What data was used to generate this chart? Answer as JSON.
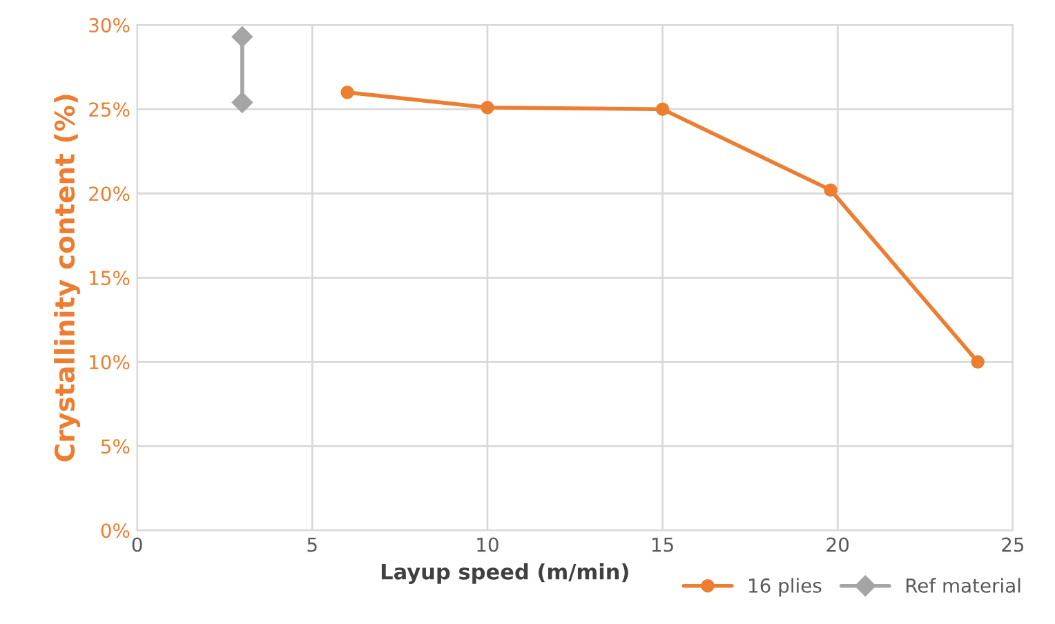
{
  "chart_data": {
    "type": "line",
    "xlabel": "Layup speed (m/min)",
    "ylabel": "Crystallinity content (%)",
    "series": [
      {
        "name": "16 plies",
        "color": "#ed7d31",
        "marker": "circle",
        "x": [
          6,
          10,
          15,
          19.8,
          24
        ],
        "values": [
          26.0,
          25.1,
          25.0,
          20.2,
          10.0
        ]
      },
      {
        "name": "Ref material",
        "color": "#a5a5a5",
        "marker": "diamond",
        "x": [
          3,
          3
        ],
        "values": [
          25.4,
          29.3
        ]
      }
    ],
    "xlim": [
      0,
      25
    ],
    "xticks": [
      0,
      5,
      10,
      15,
      20,
      25
    ],
    "ylim": [
      0,
      30
    ],
    "yticks": [
      {
        "value": 0,
        "label": "0%"
      },
      {
        "value": 5,
        "label": "5%"
      },
      {
        "value": 10,
        "label": "10%"
      },
      {
        "value": 15,
        "label": "15%"
      },
      {
        "value": 20,
        "label": "20%"
      },
      {
        "value": 25,
        "label": "25%"
      },
      {
        "value": 30,
        "label": "30%"
      }
    ],
    "grid": true,
    "legend": "bottom right"
  }
}
